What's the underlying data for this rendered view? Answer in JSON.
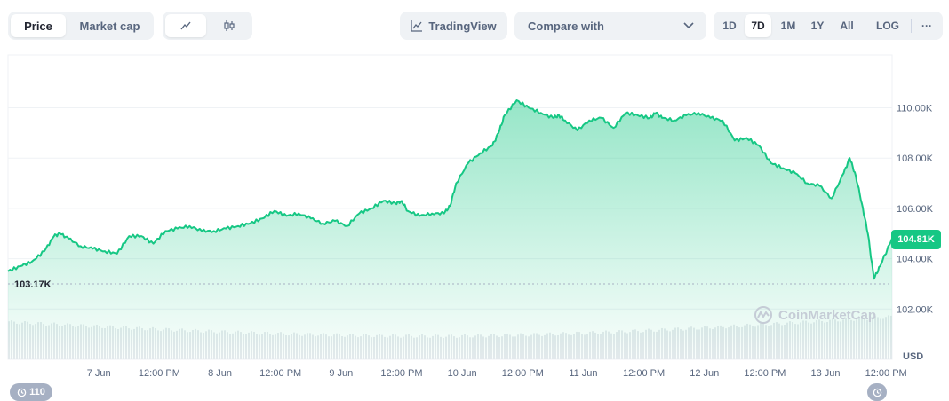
{
  "toolbar": {
    "price_label": "Price",
    "market_cap_label": "Market cap",
    "tradingview_label": "TradingView",
    "compare_label": "Compare with",
    "ranges": [
      "1D",
      "7D",
      "1M",
      "1Y",
      "All"
    ],
    "active_range": "7D",
    "log_label": "LOG",
    "more_label": "···"
  },
  "badges": {
    "left_count": "110"
  },
  "watermark": "CoinMarketCap",
  "price_tag": "104.81K",
  "start_label": "103.17K",
  "currency_label": "USD",
  "colors": {
    "line": "#16c784",
    "accent": "#16c784",
    "volume": "#e7eaee",
    "grid": "#eff2f5"
  },
  "chart_data": {
    "type": "area",
    "title": "",
    "xlabel": "",
    "ylabel": "",
    "ylim": [
      100000,
      112100
    ],
    "y_ticks": [
      {
        "value": 110000,
        "label": "110.00K"
      },
      {
        "value": 108000,
        "label": "108.00K"
      },
      {
        "value": 106000,
        "label": "106.00K"
      },
      {
        "value": 104000,
        "label": "104.00K"
      },
      {
        "value": 102000,
        "label": "102.00K"
      }
    ],
    "x_ticks": [
      {
        "x": 0.75,
        "label": "7 Jun"
      },
      {
        "x": 1.25,
        "label": "12:00 PM"
      },
      {
        "x": 1.75,
        "label": "8 Jun"
      },
      {
        "x": 2.25,
        "label": "12:00 PM"
      },
      {
        "x": 2.75,
        "label": "9 Jun"
      },
      {
        "x": 3.25,
        "label": "12:00 PM"
      },
      {
        "x": 3.75,
        "label": "10 Jun"
      },
      {
        "x": 4.25,
        "label": "12:00 PM"
      },
      {
        "x": 4.75,
        "label": "11 Jun"
      },
      {
        "x": 5.25,
        "label": "12:00 PM"
      },
      {
        "x": 5.75,
        "label": "12 Jun"
      },
      {
        "x": 6.25,
        "label": "12:00 PM"
      },
      {
        "x": 6.75,
        "label": "13 Jun"
      },
      {
        "x": 7.25,
        "label": "12:00 PM"
      }
    ],
    "x_range": [
      0,
      7.3
    ],
    "series": [
      {
        "x": [
          0.0,
          0.1,
          0.2,
          0.3,
          0.38,
          0.43,
          0.5,
          0.6,
          0.7,
          0.8,
          0.9,
          1.0,
          1.1,
          1.2,
          1.3,
          1.4,
          1.5,
          1.6,
          1.7,
          1.8,
          1.9,
          2.0,
          2.1,
          2.2,
          2.3,
          2.4,
          2.5,
          2.6,
          2.7,
          2.8,
          2.9,
          3.0,
          3.1,
          3.2,
          3.25,
          3.3,
          3.4,
          3.5,
          3.6,
          3.65,
          3.7,
          3.8,
          3.9,
          4.0,
          4.05,
          4.1,
          4.2,
          4.3,
          4.4,
          4.5,
          4.55,
          4.6,
          4.7,
          4.8,
          4.9,
          5.0,
          5.1,
          5.2,
          5.3,
          5.35,
          5.4,
          5.5,
          5.6,
          5.7,
          5.8,
          5.9,
          6.0,
          6.1,
          6.2,
          6.3,
          6.4,
          6.5,
          6.6,
          6.7,
          6.8,
          6.9,
          6.95,
          7.0,
          7.05,
          7.1,
          7.15,
          7.2,
          7.3
        ],
        "values": [
          103500,
          103700,
          103900,
          104300,
          104900,
          105000,
          104800,
          104500,
          104400,
          104300,
          104200,
          104900,
          104900,
          104600,
          105100,
          105200,
          105300,
          105100,
          105100,
          105200,
          105300,
          105400,
          105600,
          105900,
          105700,
          105800,
          105600,
          105400,
          105500,
          105300,
          105800,
          106000,
          106300,
          106200,
          106300,
          105900,
          105700,
          105800,
          105800,
          106100,
          107000,
          107800,
          108200,
          108500,
          109000,
          109700,
          110300,
          110000,
          109800,
          109600,
          109700,
          109500,
          109100,
          109500,
          109600,
          109200,
          109800,
          109700,
          109600,
          109800,
          109600,
          109500,
          109700,
          109800,
          109600,
          109500,
          108700,
          108800,
          108500,
          107800,
          107600,
          107400,
          107000,
          106900,
          106400,
          107400,
          108000,
          107300,
          106200,
          105000,
          103200,
          103700,
          104810
        ]
      }
    ],
    "volume_note": ""
  }
}
